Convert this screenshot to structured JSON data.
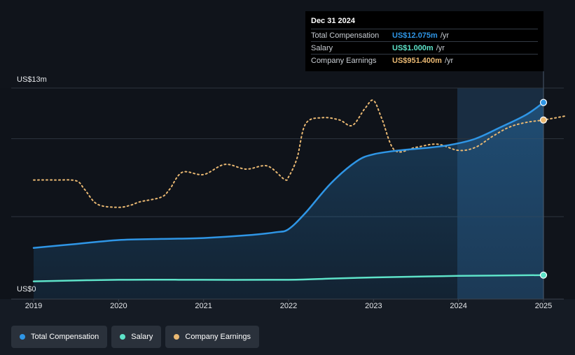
{
  "chart_data": {
    "type": "line",
    "ylabel_top": "US$13m",
    "ylabel_bottom": "US$0",
    "ylim": [
      0,
      13
    ],
    "xlim": [
      2019,
      2025.25
    ],
    "x_ticks": [
      "2019",
      "2020",
      "2021",
      "2022",
      "2023",
      "2024",
      "2025"
    ],
    "grid": true,
    "legend_position": "bottom-left",
    "series": [
      {
        "name": "Total Compensation",
        "color": "#2f96e6",
        "x": [
          2019.0,
          2019.5,
          2020.0,
          2020.5,
          2021.0,
          2021.5,
          2021.85,
          2022.0,
          2022.2,
          2022.5,
          2022.8,
          2023.0,
          2023.3,
          2023.6,
          2023.9,
          2024.2,
          2024.5,
          2024.8,
          2025.0
        ],
        "values": [
          2.75,
          3.0,
          3.25,
          3.32,
          3.38,
          3.55,
          3.75,
          3.95,
          5.0,
          6.9,
          8.3,
          8.75,
          9.0,
          9.15,
          9.35,
          9.75,
          10.5,
          11.3,
          12.075
        ]
      },
      {
        "name": "Salary",
        "color": "#5ee3c9",
        "x": [
          2019.0,
          2020.0,
          2021.0,
          2022.0,
          2022.5,
          2023.0,
          2024.0,
          2025.0
        ],
        "values": [
          0.6,
          0.7,
          0.7,
          0.7,
          0.78,
          0.85,
          0.95,
          1.0
        ]
      },
      {
        "name": "Company Earnings",
        "color": "#e9b872",
        "x": [
          2019.0,
          2019.25,
          2019.5,
          2019.6,
          2019.75,
          2020.0,
          2020.15,
          2020.25,
          2020.5,
          2020.6,
          2020.75,
          2021.0,
          2021.25,
          2021.5,
          2021.75,
          2021.95,
          2022.0,
          2022.1,
          2022.2,
          2022.4,
          2022.6,
          2022.75,
          2022.9,
          2023.0,
          2023.1,
          2023.25,
          2023.5,
          2023.75,
          2024.0,
          2024.2,
          2024.4,
          2024.6,
          2024.8,
          2025.0,
          2025.25
        ],
        "values": [
          7.1,
          7.1,
          7.05,
          6.5,
          5.55,
          5.35,
          5.5,
          5.7,
          6.0,
          6.5,
          7.6,
          7.45,
          8.1,
          7.8,
          8.0,
          7.15,
          7.3,
          8.5,
          10.7,
          11.1,
          10.95,
          10.6,
          11.7,
          12.2,
          11.0,
          9.0,
          9.2,
          9.4,
          9.0,
          9.2,
          9.9,
          10.5,
          10.8,
          10.95,
          11.2
        ]
      }
    ],
    "tooltip": {
      "date": "Dec 31 2024",
      "rows": [
        {
          "name": "Total Compensation",
          "value": "US$12.075m",
          "unit": "/yr",
          "color": "#2f96e6"
        },
        {
          "name": "Salary",
          "value": "US$1.000m",
          "unit": "/yr",
          "color": "#5ee3c9"
        },
        {
          "name": "Company Earnings",
          "value": "US$951.400m",
          "unit": "/yr",
          "color": "#e9b872"
        }
      ]
    }
  },
  "legend": {
    "items": [
      {
        "label": "Total Compensation",
        "color": "#2f96e6"
      },
      {
        "label": "Salary",
        "color": "#5ee3c9"
      },
      {
        "label": "Company Earnings",
        "color": "#e9b872"
      }
    ]
  }
}
